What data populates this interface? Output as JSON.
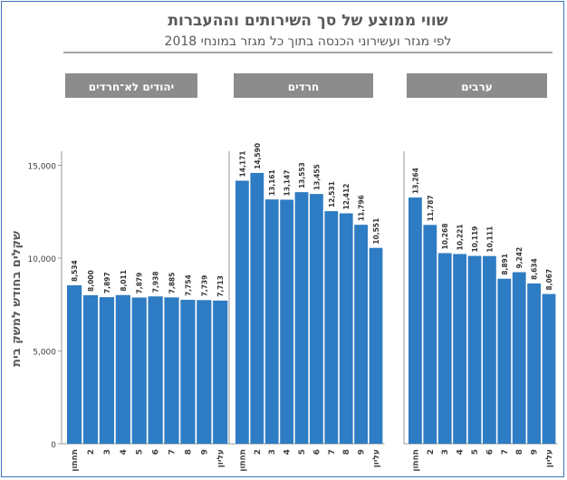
{
  "title": "שווי ממוצע של סך השירותים וההעברות",
  "subtitle": "לפי מגזר ועשירוני הכנסה בתוך כל מגזר במונחי 2018",
  "ylabel": "שקלים בחודש למשק בית",
  "colors": {
    "bar": "#2e7cc3",
    "panel_header": "#8c8c8c",
    "panel_header_text": "#ffffff",
    "title": "#595959",
    "axis": "#9a9a9a",
    "rule": "#a6a6a6"
  },
  "chart_data": [
    {
      "type": "bar",
      "panel": "יהודים לא־חרדים",
      "categories": [
        "עליון",
        "9",
        "8",
        "7",
        "6",
        "5",
        "4",
        "3",
        "2",
        "תחתון"
      ],
      "values": [
        7713,
        7739,
        7754,
        7885,
        7938,
        7879,
        8011,
        7897,
        8000,
        8534
      ],
      "value_labels": [
        "7,713",
        "7,739",
        "7,754",
        "7,885",
        "7,938",
        "7,879",
        "8,011",
        "7,897",
        "8,000",
        "8,534"
      ],
      "ylabel": "שקלים בחודש למשק בית",
      "yticks": [
        "0",
        "5,000",
        "10,000",
        "15,000"
      ],
      "ylim": [
        0,
        16500
      ]
    },
    {
      "type": "bar",
      "panel": "חרדים",
      "categories": [
        "עליון",
        "9",
        "8",
        "7",
        "6",
        "5",
        "4",
        "3",
        "2",
        "תחתון"
      ],
      "values": [
        10551,
        11796,
        12412,
        12531,
        13455,
        13553,
        13147,
        13161,
        14590,
        14171
      ],
      "value_labels": [
        "10,551",
        "11,796",
        "12,412",
        "12,531",
        "13,455",
        "13,553",
        "13,147",
        "13,161",
        "14,590",
        "14,171"
      ],
      "ylim": [
        0,
        16500
      ]
    },
    {
      "type": "bar",
      "panel": "ערבים",
      "categories": [
        "עליון",
        "9",
        "8",
        "7",
        "6",
        "5",
        "4",
        "3",
        "2",
        "תחתון"
      ],
      "values": [
        8067,
        8634,
        9242,
        8891,
        10111,
        10119,
        10221,
        10268,
        11787,
        13264
      ],
      "value_labels": [
        "8,067",
        "8,634",
        "9,242",
        "8,891",
        "10,111",
        "10,119",
        "10,221",
        "10,268",
        "11,787",
        "13,264"
      ],
      "ylim": [
        0,
        16500
      ]
    }
  ]
}
